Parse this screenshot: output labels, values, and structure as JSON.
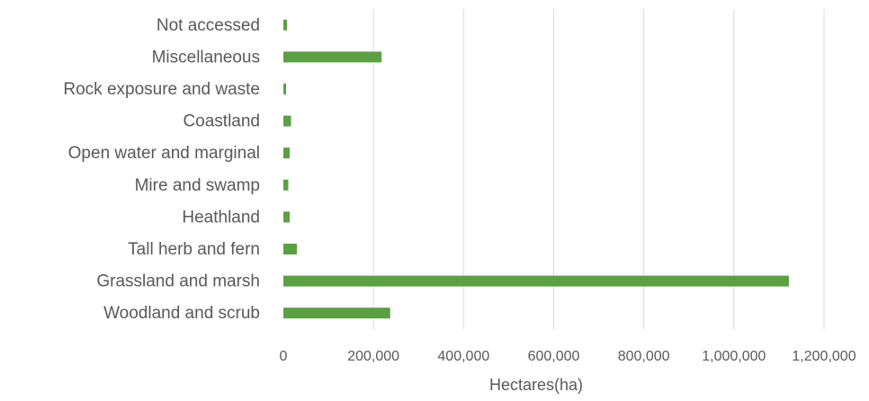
{
  "chart_data": {
    "type": "bar",
    "orientation": "horizontal",
    "title": "",
    "xlabel": "Hectares(ha)",
    "ylabel": "",
    "xlim": [
      0,
      1200000
    ],
    "x_ticks": [
      "0",
      "200,000",
      "400,000",
      "600,000",
      "800,000",
      "1,000,000",
      "1,200,000"
    ],
    "grid": "vertical major gridlines",
    "legend": "none",
    "bar_color": "#5ba043",
    "categories": [
      "Not accessed",
      "Miscellaneous",
      "Rock exposure and waste",
      "Coastland",
      "Open water and marginal",
      "Mire and swamp",
      "Heathland",
      "Tall herb and fern",
      "Grassland and marsh",
      "Woodland and scrub"
    ],
    "values": [
      8000,
      218000,
      6000,
      17000,
      14000,
      11000,
      14000,
      30000,
      1122000,
      237000
    ]
  }
}
